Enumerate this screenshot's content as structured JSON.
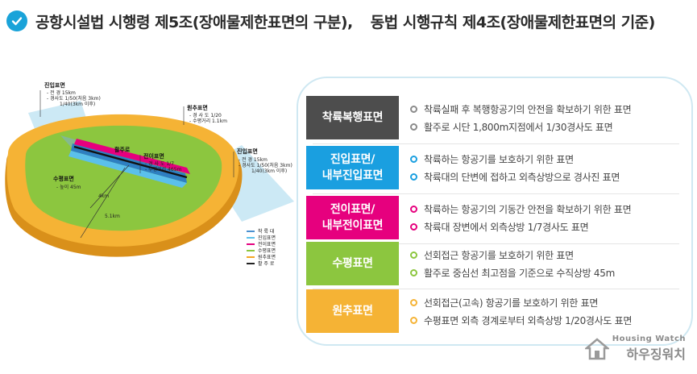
{
  "header": {
    "title_part1": "공항시설법  시행령 제5조(장애물제한표면의 구분),",
    "title_part2": "동법 시행규칙 제4조(장애물제한표면의 기준)",
    "check_icon": "check-circle-icon",
    "accent": "#1aa3d9"
  },
  "diagram": {
    "labels": {
      "approach_left_title": "진입표면",
      "approach_left_l1": "- 전  경 15km",
      "approach_left_l2": "- 경사도 1/50(처음 3km)",
      "approach_left_l3": "1/40(3km 이후)",
      "conical_title": "원추표면",
      "conical_l1": "- 경 사 도 1/20",
      "conical_l2": "- 수평거리 1.1km",
      "approach_right_title": "진입표면",
      "approach_right_l1": "- 전  경 15km",
      "approach_right_l2": "- 경사도 1/50(처음 3km)",
      "approach_right_l3": "1/40(3km 이후)",
      "strip": "활주로",
      "transition_title": "전이표면",
      "transition_l1": "- 경 사 도 1/7",
      "transition_l2": "- 수평거리 465m",
      "horizontal_title": "수평표면",
      "horizontal_l1": "- 높이 45m",
      "dist_4km": "4km",
      "dist_51km": "5.1km"
    },
    "legend": [
      {
        "label": "착 륙 대",
        "color": "#4a90d0"
      },
      {
        "label": "진입표면",
        "color": "#5bc0eb"
      },
      {
        "label": "전이표면",
        "color": "#e4007f"
      },
      {
        "label": "수평표면",
        "color": "#8cc63f"
      },
      {
        "label": "원추표면",
        "color": "#f5a623"
      },
      {
        "label": "활 주 로",
        "color": "#222222"
      }
    ]
  },
  "rows": [
    {
      "category": [
        "착륙복행표면"
      ],
      "color": "#4d4d4d",
      "bullet": "#8a8a8a",
      "lines": [
        "착륙실패 후 복행항공기의 안전을 확보하기 위한 표면",
        "활주로 시단 1,800m지점에서 1/30경사도 표면"
      ]
    },
    {
      "category": [
        "진입표면/",
        "내부진입표면"
      ],
      "color": "#1a9fe0",
      "bullet": "#1a9fe0",
      "lines": [
        "착륙하는 항공기를 보호하기 위한 표면",
        "착륙대의 단변에 접하고 외측상방으로 경사진 표면"
      ]
    },
    {
      "category": [
        "전이표면/",
        "내부전이표면"
      ],
      "color": "#e6007e",
      "bullet": "#e6007e",
      "lines": [
        "착륙하는 항공기의 기동간 안전을 확보하기 위한 표면",
        " 착륙대 장변에서 외측상방 1/7경사도 표면"
      ]
    },
    {
      "category": [
        "수평표면"
      ],
      "color": "#8cc63f",
      "bullet": "#8cc63f",
      "lines": [
        "선회접근 항공기를 보호하기 위한 표면",
        "활주로 중심선 최고점을 기준으로 수직상방 45m"
      ]
    },
    {
      "category": [
        "원추표면"
      ],
      "color": "#f5b335",
      "bullet": "#f5b335",
      "lines": [
        "선회접근(고속) 항공기를 보호하기 위한 표면",
        "수평표면 외측 경계로부터 외측상방 1/20경사도 표면"
      ]
    }
  ],
  "watermark": {
    "en": "Housing Watch",
    "ko": "하우징워치",
    "icon": "house-logo-icon"
  }
}
